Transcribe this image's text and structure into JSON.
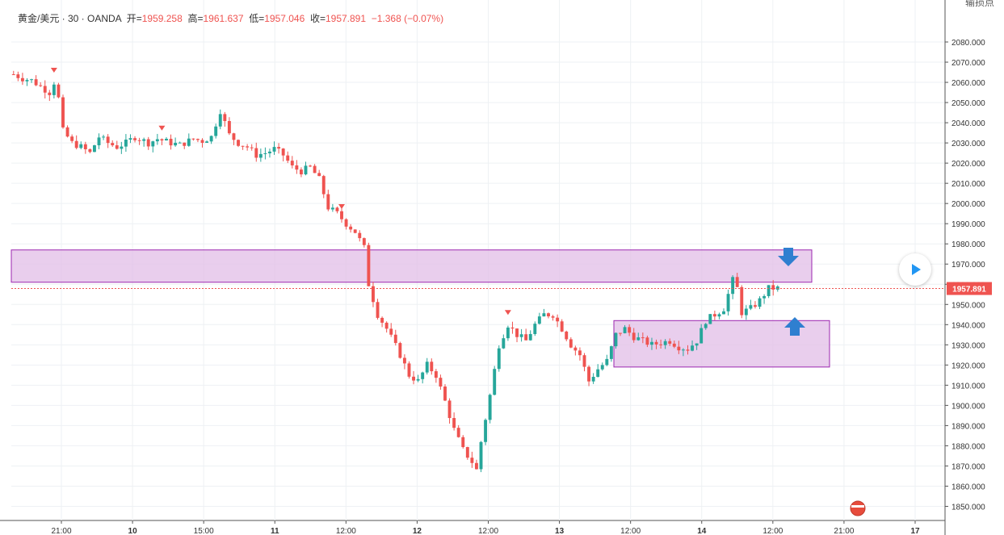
{
  "header": {
    "symbol": "黄金/美元 · 30 · OANDA",
    "open_label": "开=",
    "open": "1959.258",
    "high_label": "高=",
    "high": "1961.637",
    "low_label": "低=",
    "low": "1957.046",
    "close_label": "收=",
    "close": "1957.891",
    "change": "−1.368 (−0.07%)"
  },
  "corner_label": "输损点",
  "colors": {
    "up": "#26a69a",
    "down": "#ef5350",
    "zone_fill": "#e1bee7",
    "zone_border": "#9c27b0",
    "arrow": "#2f7fd0",
    "grid": "#eef1f4"
  },
  "chart_data": {
    "type": "candlestick",
    "instrument": "黄金/美元",
    "timeframe": "30",
    "ylim": [
      1843,
      2088
    ],
    "y_ticks": [
      "2080.000",
      "2070.000",
      "2060.000",
      "2050.000",
      "2040.000",
      "2030.000",
      "2020.000",
      "2010.000",
      "2000.000",
      "1990.000",
      "1980.000",
      "1970.000",
      "1960.000",
      "1950.000",
      "1940.000",
      "1930.000",
      "1920.000",
      "1910.000",
      "1900.000",
      "1890.000",
      "1880.000",
      "1870.000",
      "1860.000",
      "1850.000"
    ],
    "x_ticks": [
      "21:00",
      "10",
      "15:00",
      "11",
      "12:00",
      "12",
      "12:00",
      "13",
      "12:00",
      "14",
      "12:00",
      "21:00",
      "17"
    ],
    "last_price": "1957.891",
    "price_path": [
      [
        0,
        2064
      ],
      [
        2,
        2062
      ],
      [
        4,
        2061
      ],
      [
        6,
        2058
      ],
      [
        8,
        2055
      ],
      [
        9,
        2060
      ],
      [
        10,
        2052
      ],
      [
        11,
        2036
      ],
      [
        13,
        2030
      ],
      [
        15,
        2028
      ],
      [
        17,
        2025
      ],
      [
        19,
        2033
      ],
      [
        21,
        2030
      ],
      [
        23,
        2028
      ],
      [
        25,
        2030
      ],
      [
        27,
        2033
      ],
      [
        30,
        2030
      ],
      [
        32,
        2032
      ],
      [
        35,
        2030
      ],
      [
        37,
        2029
      ],
      [
        40,
        2032
      ],
      [
        42,
        2031
      ],
      [
        44,
        2033
      ],
      [
        46,
        2046
      ],
      [
        47,
        2040
      ],
      [
        48,
        2034
      ],
      [
        50,
        2030
      ],
      [
        52,
        2028
      ],
      [
        54,
        2024
      ],
      [
        56,
        2025
      ],
      [
        58,
        2027
      ],
      [
        60,
        2024
      ],
      [
        62,
        2018
      ],
      [
        64,
        2016
      ],
      [
        66,
        2018
      ],
      [
        68,
        2012
      ],
      [
        70,
        1998
      ],
      [
        72,
        1995
      ],
      [
        74,
        1990
      ],
      [
        76,
        1986
      ],
      [
        78,
        1978
      ],
      [
        79,
        1960
      ],
      [
        81,
        1945
      ],
      [
        83,
        1938
      ],
      [
        86,
        1925
      ],
      [
        88,
        1915
      ],
      [
        90,
        1912
      ],
      [
        92,
        1920
      ],
      [
        94,
        1915
      ],
      [
        96,
        1902
      ],
      [
        98,
        1888
      ],
      [
        100,
        1878
      ],
      [
        102,
        1872
      ],
      [
        103,
        1868
      ],
      [
        104,
        1882
      ],
      [
        106,
        1905
      ],
      [
        108,
        1930
      ],
      [
        110,
        1940
      ],
      [
        112,
        1935
      ],
      [
        114,
        1932
      ],
      [
        116,
        1940
      ],
      [
        118,
        1945
      ],
      [
        120,
        1945
      ],
      [
        122,
        1938
      ],
      [
        124,
        1930
      ],
      [
        126,
        1925
      ],
      [
        128,
        1912
      ],
      [
        130,
        1918
      ],
      [
        132,
        1922
      ],
      [
        134,
        1935
      ],
      [
        136,
        1938
      ],
      [
        138,
        1934
      ],
      [
        140,
        1932
      ],
      [
        142,
        1930
      ],
      [
        144,
        1931
      ],
      [
        146,
        1932
      ],
      [
        148,
        1929
      ],
      [
        150,
        1928
      ],
      [
        152,
        1932
      ],
      [
        154,
        1942
      ],
      [
        156,
        1945
      ],
      [
        158,
        1948
      ],
      [
        160,
        1962
      ],
      [
        161,
        1958
      ],
      [
        162,
        1946
      ],
      [
        164,
        1948
      ],
      [
        166,
        1952
      ],
      [
        168,
        1958
      ],
      [
        170,
        1958
      ]
    ],
    "zones": [
      {
        "from": 1961,
        "to": 1977,
        "direction": "down"
      },
      {
        "from": 1919,
        "to": 1942,
        "direction": "up"
      }
    ],
    "markers": [
      9,
      33,
      73,
      110
    ]
  }
}
